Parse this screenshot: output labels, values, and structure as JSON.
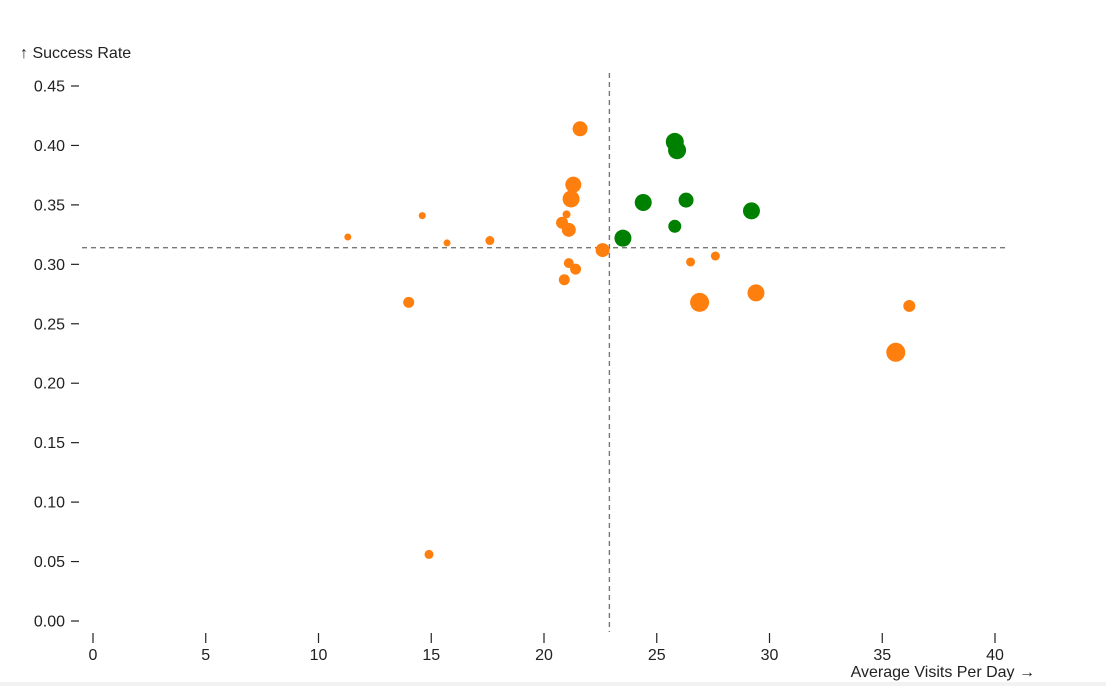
{
  "chart_data": {
    "type": "scatter",
    "xlabel": "Average Visits Per Day →",
    "ylabel": "↑ Success Rate",
    "xlim": [
      0,
      40
    ],
    "ylim": [
      0,
      0.45
    ],
    "x_ticks": [
      0,
      5,
      10,
      15,
      20,
      25,
      30,
      35,
      40
    ],
    "y_ticks": [
      0.0,
      0.05,
      0.1,
      0.15,
      0.2,
      0.25,
      0.3,
      0.35,
      0.4,
      0.45
    ],
    "y_tick_labels": [
      "0.00",
      "0.05",
      "0.10",
      "0.15",
      "0.20",
      "0.25",
      "0.30",
      "0.35",
      "0.40",
      "0.45"
    ],
    "x_tick_labels": [
      "0",
      "5",
      "10",
      "15",
      "20",
      "25",
      "30",
      "35",
      "40"
    ],
    "reference_lines": {
      "x": 22.9,
      "y": 0.314
    },
    "colors": {
      "orange": "#ff7f0e",
      "green": "#008000"
    },
    "points": [
      {
        "x": 11.3,
        "y": 0.323,
        "r": 3.5,
        "color": "orange"
      },
      {
        "x": 14.6,
        "y": 0.341,
        "r": 3.5,
        "color": "orange"
      },
      {
        "x": 15.7,
        "y": 0.318,
        "r": 3.5,
        "color": "orange"
      },
      {
        "x": 17.6,
        "y": 0.32,
        "r": 4.5,
        "color": "orange"
      },
      {
        "x": 14.0,
        "y": 0.268,
        "r": 5.5,
        "color": "orange"
      },
      {
        "x": 14.9,
        "y": 0.056,
        "r": 4.5,
        "color": "orange"
      },
      {
        "x": 21.6,
        "y": 0.414,
        "r": 7.5,
        "color": "orange"
      },
      {
        "x": 21.3,
        "y": 0.367,
        "r": 8.0,
        "color": "orange"
      },
      {
        "x": 21.2,
        "y": 0.355,
        "r": 8.5,
        "color": "orange"
      },
      {
        "x": 21.0,
        "y": 0.342,
        "r": 4.0,
        "color": "orange"
      },
      {
        "x": 20.8,
        "y": 0.335,
        "r": 6.0,
        "color": "orange"
      },
      {
        "x": 21.1,
        "y": 0.329,
        "r": 7.0,
        "color": "orange"
      },
      {
        "x": 22.6,
        "y": 0.312,
        "r": 7.0,
        "color": "orange"
      },
      {
        "x": 21.1,
        "y": 0.301,
        "r": 5.0,
        "color": "orange"
      },
      {
        "x": 21.4,
        "y": 0.296,
        "r": 5.5,
        "color": "orange"
      },
      {
        "x": 20.9,
        "y": 0.287,
        "r": 5.5,
        "color": "orange"
      },
      {
        "x": 26.5,
        "y": 0.302,
        "r": 4.5,
        "color": "orange"
      },
      {
        "x": 27.6,
        "y": 0.307,
        "r": 4.5,
        "color": "orange"
      },
      {
        "x": 26.9,
        "y": 0.268,
        "r": 9.5,
        "color": "orange"
      },
      {
        "x": 29.4,
        "y": 0.276,
        "r": 8.5,
        "color": "orange"
      },
      {
        "x": 36.2,
        "y": 0.265,
        "r": 6.0,
        "color": "orange"
      },
      {
        "x": 35.6,
        "y": 0.226,
        "r": 9.5,
        "color": "orange"
      },
      {
        "x": 23.5,
        "y": 0.322,
        "r": 8.5,
        "color": "green"
      },
      {
        "x": 24.4,
        "y": 0.352,
        "r": 8.5,
        "color": "green"
      },
      {
        "x": 25.8,
        "y": 0.403,
        "r": 9.0,
        "color": "green"
      },
      {
        "x": 25.9,
        "y": 0.396,
        "r": 9.0,
        "color": "green"
      },
      {
        "x": 25.8,
        "y": 0.332,
        "r": 6.5,
        "color": "green"
      },
      {
        "x": 26.3,
        "y": 0.354,
        "r": 7.5,
        "color": "green"
      },
      {
        "x": 29.2,
        "y": 0.345,
        "r": 8.5,
        "color": "green"
      }
    ]
  }
}
